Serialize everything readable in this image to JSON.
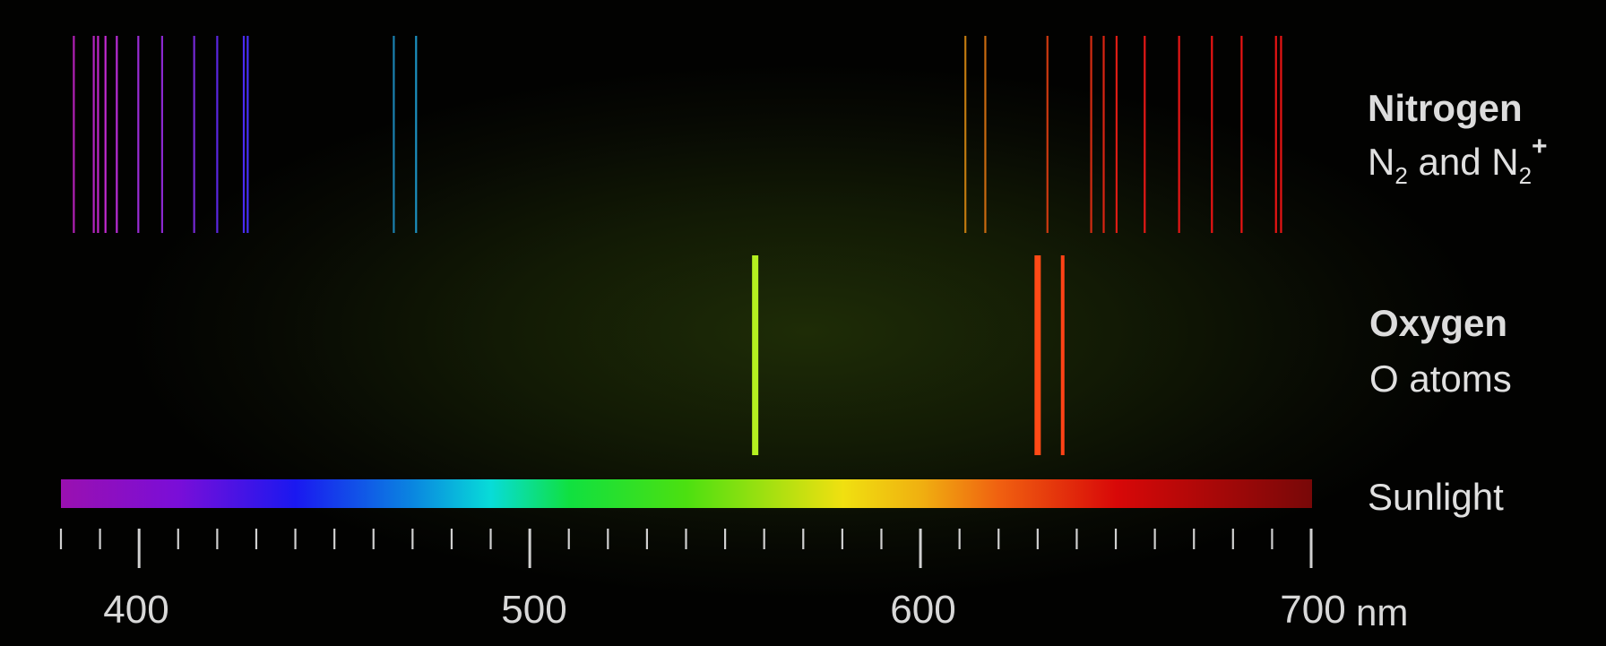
{
  "labels": {
    "nitrogen_title": "Nitrogen",
    "nitrogen_formula_a": "N",
    "nitrogen_sub_a": "2",
    "nitrogen_and": " and N",
    "nitrogen_sub_b": "2",
    "nitrogen_sup_b": "+",
    "oxygen_title": "Oxygen",
    "oxygen_sub": "O atoms",
    "sunlight": "Sunlight",
    "unit": "nm"
  },
  "axis": {
    "min_nm": 380,
    "max_nm": 700,
    "minor_step_nm": 10,
    "major_ticks": [
      400,
      500,
      600,
      700
    ],
    "tick_labels": [
      "400",
      "500",
      "600",
      "700"
    ]
  },
  "nitrogen_lines": [
    {
      "nm": 383.3,
      "color": "#b020b4"
    },
    {
      "nm": 388.4,
      "color": "#b424c0"
    },
    {
      "nm": 389.5,
      "color": "#c028c8"
    },
    {
      "nm": 391.4,
      "color": "#c22ad0"
    },
    {
      "nm": 394.3,
      "color": "#b82cd6"
    },
    {
      "nm": 399.8,
      "color": "#9a2cd4"
    },
    {
      "nm": 405.9,
      "color": "#8c28d0"
    },
    {
      "nm": 414.1,
      "color": "#7428d4"
    },
    {
      "nm": 420.0,
      "color": "#5a26e0"
    },
    {
      "nm": 426.8,
      "color": "#4a2af4"
    },
    {
      "nm": 427.8,
      "color": "#4630f6"
    },
    {
      "nm": 465.2,
      "color": "#1a80b0"
    },
    {
      "nm": 470.9,
      "color": "#1c90c0"
    },
    {
      "nm": 611.5,
      "color": "#c07a10"
    },
    {
      "nm": 616.6,
      "color": "#c86a10"
    },
    {
      "nm": 632.5,
      "color": "#d03a10"
    },
    {
      "nm": 643.7,
      "color": "#d42c12"
    },
    {
      "nm": 646.9,
      "color": "#d82412"
    },
    {
      "nm": 650.2,
      "color": "#de1c14"
    },
    {
      "nm": 657.4,
      "color": "#e41816"
    },
    {
      "nm": 666.2,
      "color": "#e81616"
    },
    {
      "nm": 674.6,
      "color": "#ea1414"
    },
    {
      "nm": 682.2,
      "color": "#ea1414"
    },
    {
      "nm": 691.0,
      "color": "#e81414"
    },
    {
      "nm": 692.3,
      "color": "#e81414"
    }
  ],
  "oxygen_lines": [
    {
      "nm": 557.7,
      "color": "#b4f020"
    },
    {
      "nm": 630.0,
      "color": "#ff4a16"
    },
    {
      "nm": 636.4,
      "color": "#ff4216"
    }
  ],
  "sunlight_gradient": [
    {
      "nm": 380,
      "color": "#9a10b0"
    },
    {
      "nm": 410,
      "color": "#7a0ed8"
    },
    {
      "nm": 440,
      "color": "#1a18f0"
    },
    {
      "nm": 470,
      "color": "#0a86e0"
    },
    {
      "nm": 490,
      "color": "#08dcd8"
    },
    {
      "nm": 510,
      "color": "#10e040"
    },
    {
      "nm": 540,
      "color": "#4ce010"
    },
    {
      "nm": 570,
      "color": "#c8e010"
    },
    {
      "nm": 580,
      "color": "#f0e010"
    },
    {
      "nm": 600,
      "color": "#f0b010"
    },
    {
      "nm": 620,
      "color": "#f06010"
    },
    {
      "nm": 650,
      "color": "#d80808"
    },
    {
      "nm": 700,
      "color": "#780808"
    }
  ]
}
